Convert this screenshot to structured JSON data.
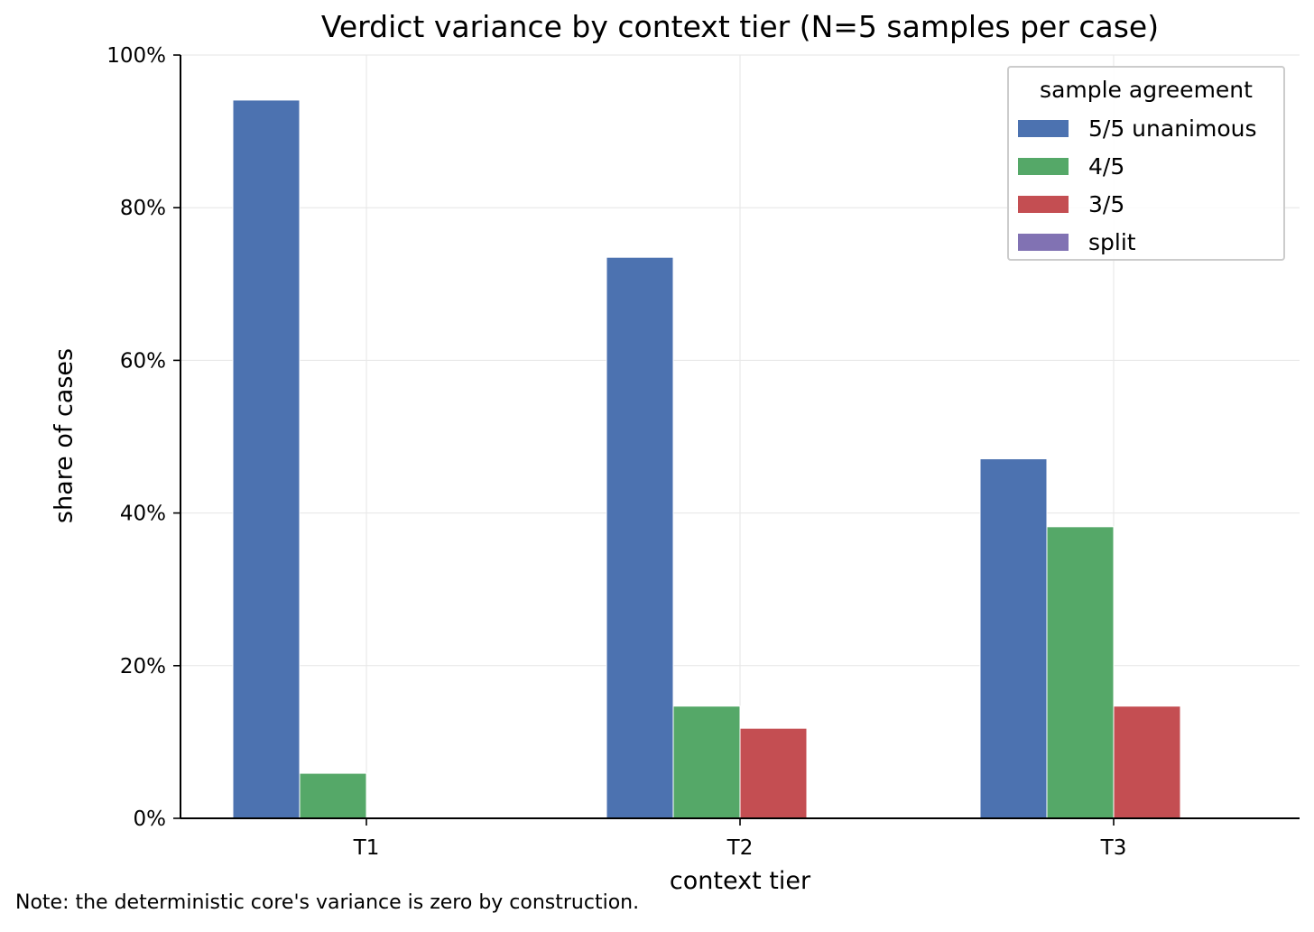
{
  "chart_data": {
    "type": "bar",
    "title": "Verdict variance by context tier (N=5 samples per case)",
    "xlabel": "context tier",
    "ylabel": "share of cases",
    "categories": [
      "T1",
      "T2",
      "T3"
    ],
    "series": [
      {
        "name": "5/5 unanimous",
        "color": "#4c72b0",
        "values": [
          94.1,
          73.5,
          47.1
        ]
      },
      {
        "name": "4/5",
        "color": "#55a868",
        "values": [
          5.9,
          14.7,
          38.2
        ]
      },
      {
        "name": "3/5",
        "color": "#c44e52",
        "values": [
          0,
          11.8,
          14.7
        ]
      },
      {
        "name": "split",
        "color": "#8172b3",
        "values": [
          0,
          0,
          0
        ]
      }
    ],
    "ylim": [
      0,
      100
    ],
    "yticks": [
      "0%",
      "20%",
      "40%",
      "60%",
      "80%",
      "100%"
    ],
    "grid": true,
    "legend": {
      "title": "sample agreement",
      "placement": "top-right"
    }
  },
  "note": "Note: the deterministic core's variance is zero by construction."
}
